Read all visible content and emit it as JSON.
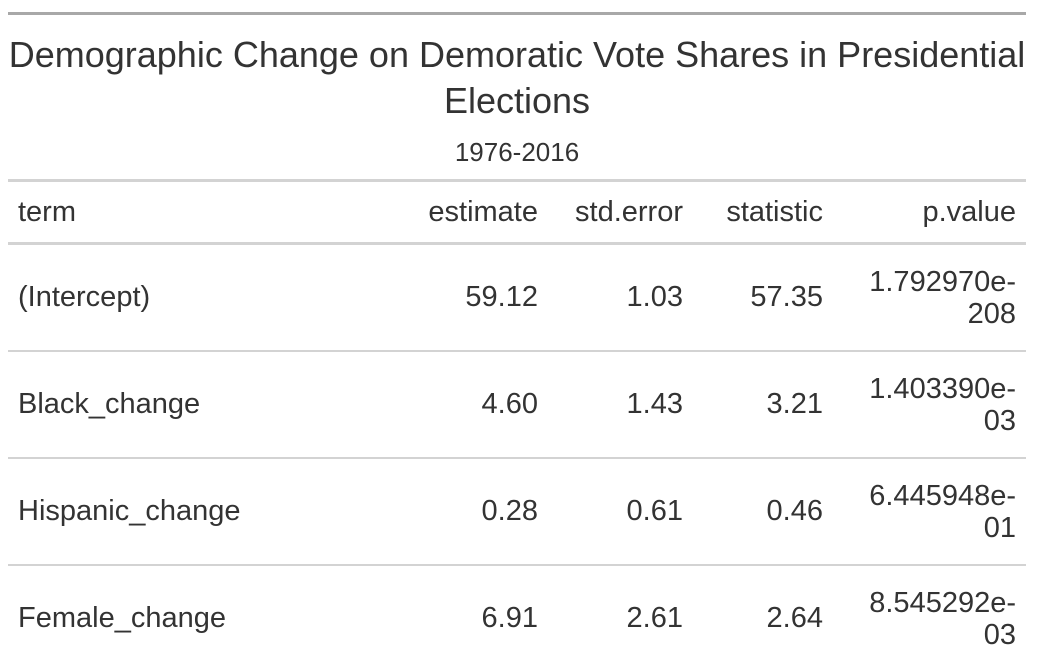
{
  "table": {
    "title": "Demographic Change on Demoratic Vote Shares in Presidential Elections",
    "subtitle": "1976-2016",
    "columns": [
      "term",
      "estimate",
      "std.error",
      "statistic",
      "p.value"
    ],
    "rows": [
      {
        "term": "(Intercept)",
        "estimate": "59.12",
        "std_error": "1.03",
        "statistic": "57.35",
        "p_value_line1": "1.792970e-",
        "p_value_line2": "208"
      },
      {
        "term": "Black_change",
        "estimate": "4.60",
        "std_error": "1.43",
        "statistic": "3.21",
        "p_value_line1": "1.403390e-",
        "p_value_line2": "03"
      },
      {
        "term": "Hispanic_change",
        "estimate": "0.28",
        "std_error": "0.61",
        "statistic": "0.46",
        "p_value_line1": "6.445948e-",
        "p_value_line2": "01"
      },
      {
        "term": "Female_change",
        "estimate": "6.91",
        "std_error": "2.61",
        "statistic": "2.64",
        "p_value_line1": "8.545292e-",
        "p_value_line2": "03"
      }
    ]
  },
  "chart_data": {
    "type": "table",
    "title": "Demographic Change on Demoratic Vote Shares in Presidential Elections",
    "subtitle": "1976-2016",
    "columns": [
      "term",
      "estimate",
      "std.error",
      "statistic",
      "p.value"
    ],
    "rows": [
      [
        "(Intercept)",
        59.12,
        1.03,
        57.35,
        1.79297e-208
      ],
      [
        "Black_change",
        4.6,
        1.43,
        3.21,
        0.00140339
      ],
      [
        "Hispanic_change",
        0.28,
        0.61,
        0.46,
        0.6445948
      ],
      [
        "Female_change",
        6.91,
        2.61,
        2.64,
        0.008545292
      ]
    ]
  }
}
